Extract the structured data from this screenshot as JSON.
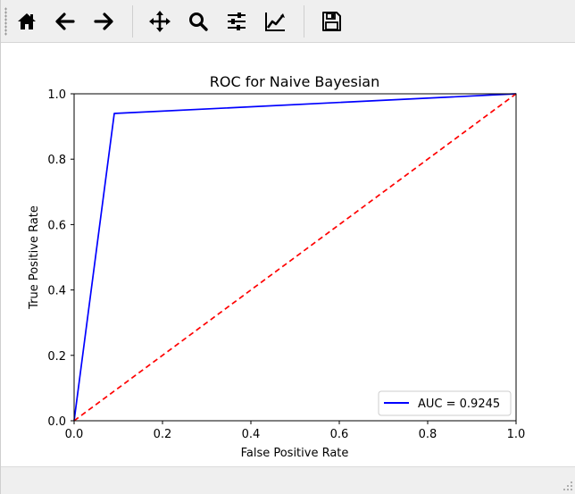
{
  "toolbar": {
    "buttons": [
      {
        "name": "home-button",
        "icon": "home-icon"
      },
      {
        "name": "back-button",
        "icon": "arrow-left-icon"
      },
      {
        "name": "forward-button",
        "icon": "arrow-right-icon"
      },
      {
        "name": "pan-button",
        "icon": "move-icon"
      },
      {
        "name": "zoom-button",
        "icon": "magnifier-icon"
      },
      {
        "name": "subplots-button",
        "icon": "sliders-icon"
      },
      {
        "name": "edit-axis-button",
        "icon": "line-chart-icon"
      },
      {
        "name": "save-button",
        "icon": "floppy-disk-icon"
      }
    ]
  },
  "chart_data": {
    "type": "line",
    "title": "ROC for Naive Bayesian",
    "xlabel": "False Positive Rate",
    "ylabel": "True Positive Rate",
    "xlim": [
      0.0,
      1.0
    ],
    "ylim": [
      0.0,
      1.0
    ],
    "xticks": [
      "0.0",
      "0.2",
      "0.4",
      "0.6",
      "0.8",
      "1.0"
    ],
    "yticks": [
      "0.0",
      "0.2",
      "0.4",
      "0.6",
      "0.8",
      "1.0"
    ],
    "grid": false,
    "legend_position": "lower-right",
    "series": [
      {
        "name": "AUC = 0.9245",
        "color": "#0000ff",
        "style": "solid",
        "x": [
          0.0,
          0.091,
          1.0
        ],
        "y": [
          0.0,
          0.94,
          1.0
        ]
      },
      {
        "color": "#ff0000",
        "style": "dashed",
        "x": [
          0.0,
          1.0
        ],
        "y": [
          0.0,
          1.0
        ]
      }
    ]
  }
}
